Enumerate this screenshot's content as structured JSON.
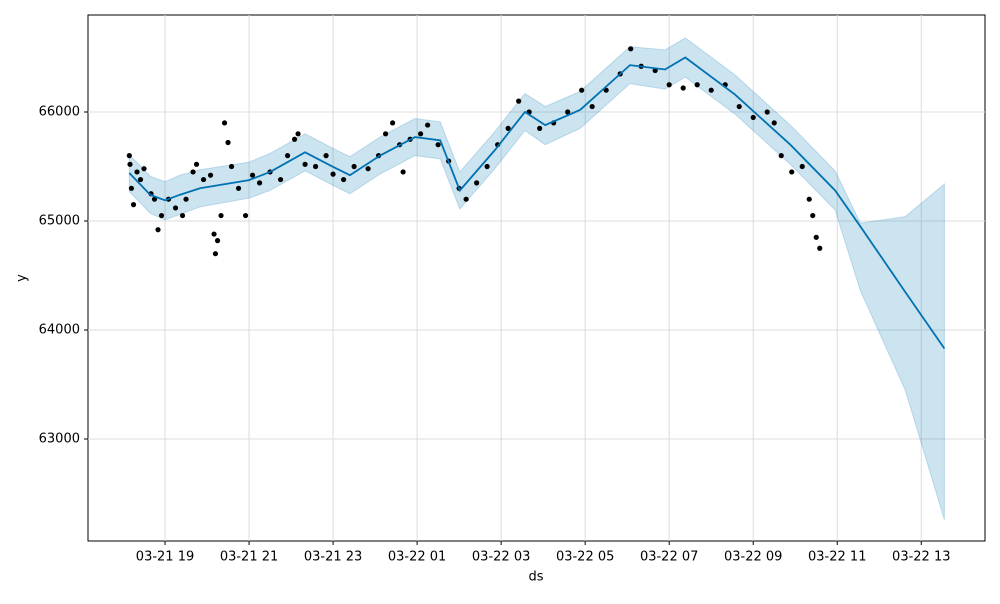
{
  "chart_data": {
    "type": "line",
    "x_label": "ds",
    "y_label": "y",
    "color": "#0072B2",
    "x": [
      "03-21 18:09",
      "03-21 18:39",
      "03-21 19:00",
      "03-21 19:21",
      "03-21 19:50",
      "03-21 21:00",
      "03-21 21:30",
      "03-21 22:20",
      "03-21 22:56",
      "03-21 23:24",
      "03-22 00:07",
      "03-22 00:57",
      "03-22 01:33",
      "03-22 02:01",
      "03-22 02:51",
      "03-22 03:34",
      "03-22 04:03",
      "03-22 04:53",
      "03-22 06:04",
      "03-22 06:54",
      "03-22 07:23",
      "03-22 08:34",
      "03-22 09:53",
      "03-22 10:57",
      "03-22 11:33",
      "03-22 12:37",
      "03-22 13:33"
    ],
    "values": [
      65440,
      65240,
      65190,
      65240,
      65300,
      65375,
      65450,
      65630,
      65510,
      65420,
      65600,
      65770,
      65740,
      65280,
      65650,
      66000,
      65880,
      66020,
      66430,
      66390,
      66500,
      66160,
      65700,
      65280,
      64950,
      64350,
      63830
    ],
    "lower": [
      65270,
      65070,
      65010,
      65060,
      65130,
      65210,
      65280,
      65460,
      65340,
      65250,
      65430,
      65600,
      65570,
      65110,
      65480,
      65830,
      65700,
      65850,
      66260,
      66210,
      66320,
      65980,
      65520,
      65100,
      64360,
      63450,
      62260
    ],
    "upper": [
      65610,
      65410,
      65360,
      65420,
      65470,
      65540,
      65620,
      65800,
      65680,
      65590,
      65770,
      65940,
      65910,
      65450,
      65820,
      66170,
      66050,
      66190,
      66600,
      66570,
      66680,
      66340,
      65880,
      65460,
      64980,
      65040,
      65340
    ],
    "scatter": {
      "color": "#000000",
      "x": [
        "03-21 18:09",
        "03-21 18:10",
        "03-21 18:12",
        "03-21 18:15",
        "03-21 18:20",
        "03-21 18:25",
        "03-21 18:30",
        "03-21 18:40",
        "03-21 18:45",
        "03-21 18:50",
        "03-21 18:55",
        "03-21 19:05",
        "03-21 19:15",
        "03-21 19:25",
        "03-21 19:30",
        "03-21 19:40",
        "03-21 19:45",
        "03-21 19:55",
        "03-21 20:05",
        "03-21 20:10",
        "03-21 20:12",
        "03-21 20:15",
        "03-21 20:20",
        "03-21 20:25",
        "03-21 20:30",
        "03-21 20:35",
        "03-21 20:45",
        "03-21 20:55",
        "03-21 21:05",
        "03-21 21:15",
        "03-21 21:30",
        "03-21 21:45",
        "03-21 21:55",
        "03-21 22:05",
        "03-21 22:10",
        "03-21 22:20",
        "03-21 22:35",
        "03-21 22:50",
        "03-21 23:00",
        "03-21 23:15",
        "03-21 23:30",
        "03-21 23:50",
        "03-22 00:05",
        "03-22 00:15",
        "03-22 00:25",
        "03-22 00:35",
        "03-22 00:40",
        "03-22 00:50",
        "03-22 01:05",
        "03-22 01:15",
        "03-22 01:30",
        "03-22 01:45",
        "03-22 02:00",
        "03-22 02:10",
        "03-22 02:25",
        "03-22 02:40",
        "03-22 02:55",
        "03-22 03:10",
        "03-22 03:25",
        "03-22 03:40",
        "03-22 03:55",
        "03-22 04:15",
        "03-22 04:35",
        "03-22 04:55",
        "03-22 05:10",
        "03-22 05:30",
        "03-22 05:50",
        "03-22 06:05",
        "03-22 06:20",
        "03-22 06:40",
        "03-22 07:00",
        "03-22 07:20",
        "03-22 07:40",
        "03-22 08:00",
        "03-22 08:20",
        "03-22 08:40",
        "03-22 09:00",
        "03-22 09:20",
        "03-22 09:30",
        "03-22 09:40",
        "03-22 09:55",
        "03-22 10:10",
        "03-22 10:20",
        "03-22 10:25",
        "03-22 10:30",
        "03-22 10:35"
      ],
      "values": [
        65600,
        65520,
        65300,
        65150,
        65450,
        65380,
        65480,
        65250,
        65200,
        64920,
        65050,
        65200,
        65120,
        65050,
        65200,
        65450,
        65520,
        65380,
        65420,
        64880,
        64700,
        64820,
        65050,
        65900,
        65720,
        65500,
        65300,
        65050,
        65420,
        65350,
        65450,
        65380,
        65600,
        65750,
        65800,
        65520,
        65500,
        65600,
        65430,
        65380,
        65500,
        65480,
        65600,
        65800,
        65900,
        65700,
        65450,
        65750,
        65800,
        65880,
        65700,
        65550,
        65300,
        65200,
        65350,
        65500,
        65700,
        65850,
        66100,
        66000,
        65850,
        65900,
        66000,
        66200,
        66050,
        66200,
        66350,
        66580,
        66420,
        66380,
        66250,
        66220,
        66250,
        66200,
        66250,
        66050,
        65950,
        66000,
        65900,
        65600,
        65450,
        65500,
        65200,
        65050,
        64850,
        64750
      ]
    },
    "xlim": [
      "03-21 17:10",
      "03-22 14:31"
    ],
    "xticks": [
      "03-21 19",
      "03-21 21",
      "03-21 23",
      "03-22 01",
      "03-22 03",
      "03-22 05",
      "03-22 07",
      "03-22 09",
      "03-22 11",
      "03-22 13"
    ],
    "ylim": [
      62064,
      66890
    ],
    "yticks": [
      63000,
      64000,
      65000,
      66000
    ],
    "grid": true
  }
}
